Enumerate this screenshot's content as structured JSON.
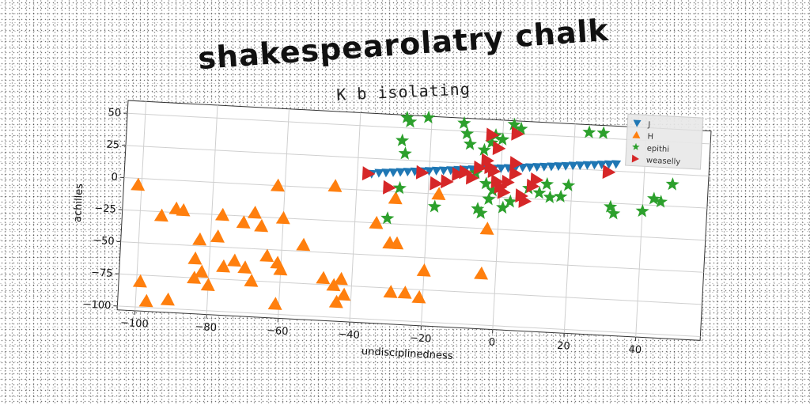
{
  "chart_data": {
    "type": "scatter",
    "title": "shakespearolatry chalk",
    "subtitle": "K b isolating",
    "xlabel": "undisciplinedness",
    "ylabel": "achilles",
    "xlim": [
      -105,
      58
    ],
    "ylim": [
      -103,
      60
    ],
    "xticks": [
      -100,
      -80,
      -60,
      -40,
      -20,
      0,
      20,
      40
    ],
    "yticks": [
      50,
      25,
      0,
      -25,
      -50,
      -75,
      -100
    ],
    "grid": true,
    "legend_position": "top-right",
    "series": [
      {
        "name": "J",
        "marker": "triangle-down",
        "color": "#1f77b4",
        "points": [
          [
            -36,
            13
          ],
          [
            -34,
            14
          ],
          [
            -32,
            14.5
          ],
          [
            -30,
            15
          ],
          [
            -28,
            15.5
          ],
          [
            -26,
            16
          ],
          [
            -24,
            16.5
          ],
          [
            -22,
            17
          ],
          [
            -20,
            17.5
          ],
          [
            -18,
            18
          ],
          [
            -16,
            18.5
          ],
          [
            -14,
            19
          ],
          [
            -12,
            19.5
          ],
          [
            -10,
            20
          ],
          [
            -8,
            20.5
          ],
          [
            -6,
            21
          ],
          [
            -4,
            21.5
          ],
          [
            -2,
            22
          ],
          [
            0,
            22.5
          ],
          [
            2,
            23
          ],
          [
            4,
            23.5
          ],
          [
            6,
            24
          ],
          [
            8,
            24.5
          ],
          [
            10,
            25
          ],
          [
            12,
            25.5
          ],
          [
            14,
            26
          ],
          [
            16,
            26.5
          ],
          [
            18,
            27
          ],
          [
            20,
            27.5
          ],
          [
            22,
            28
          ],
          [
            24,
            28.5
          ],
          [
            26,
            29
          ],
          [
            28,
            29.5
          ],
          [
            30,
            30
          ],
          [
            32,
            30.5
          ]
        ]
      },
      {
        "name": "H",
        "marker": "triangle-up",
        "color": "#ff7f0e",
        "points": [
          [
            -101,
            -5
          ],
          [
            -94,
            -28
          ],
          [
            -90,
            -22
          ],
          [
            -88,
            -23
          ],
          [
            -83,
            -45
          ],
          [
            -78,
            -42
          ],
          [
            -77,
            -25
          ],
          [
            -71,
            -30
          ],
          [
            -68,
            -22
          ],
          [
            -66,
            -32
          ],
          [
            -60,
            -25
          ],
          [
            -62,
            0
          ],
          [
            -54,
            -45
          ],
          [
            -46,
            2
          ],
          [
            -99,
            -80
          ],
          [
            -97,
            -95
          ],
          [
            -91,
            -93
          ],
          [
            -84,
            -60
          ],
          [
            -84,
            -75
          ],
          [
            -82,
            -70
          ],
          [
            -80,
            -80
          ],
          [
            -76,
            -65
          ],
          [
            -73,
            -60
          ],
          [
            -70,
            -65
          ],
          [
            -68,
            -75
          ],
          [
            -64,
            -55
          ],
          [
            -61,
            -60
          ],
          [
            -60,
            -65
          ],
          [
            -61,
            -92
          ],
          [
            -48,
            -70
          ],
          [
            -45,
            -75
          ],
          [
            -43,
            -70
          ],
          [
            -44,
            -88
          ],
          [
            -42,
            -82
          ],
          [
            -34,
            -25
          ],
          [
            -30,
            -40
          ],
          [
            -28,
            -40
          ],
          [
            -29,
            -5
          ],
          [
            -29,
            -78
          ],
          [
            -25,
            -78
          ],
          [
            -21,
            -81
          ],
          [
            -20,
            -60
          ],
          [
            -17,
            0
          ],
          [
            -3,
            -25
          ],
          [
            -4,
            -60
          ]
        ]
      },
      {
        "name": "epithi",
        "marker": "star",
        "color": "#2ca02c",
        "points": [
          [
            -27,
            58
          ],
          [
            -26,
            55
          ],
          [
            -21,
            59
          ],
          [
            -28,
            40
          ],
          [
            -27,
            30
          ],
          [
            -31,
            -21
          ],
          [
            -28,
            3
          ],
          [
            -18,
            -10
          ],
          [
            -11,
            56
          ],
          [
            -10,
            48
          ],
          [
            -9,
            40
          ],
          [
            -5,
            36
          ],
          [
            -3,
            42
          ],
          [
            -2,
            48
          ],
          [
            0,
            45
          ],
          [
            3,
            57
          ],
          [
            5,
            54
          ],
          [
            -7,
            18
          ],
          [
            -4,
            10
          ],
          [
            -2,
            5
          ],
          [
            -6,
            -10
          ],
          [
            -5,
            -13
          ],
          [
            -3,
            -2
          ],
          [
            1,
            -8
          ],
          [
            3,
            -3
          ],
          [
            8,
            8
          ],
          [
            11,
            5
          ],
          [
            13,
            12
          ],
          [
            14,
            2
          ],
          [
            17,
            3
          ],
          [
            19,
            12
          ],
          [
            24,
            54
          ],
          [
            28,
            54
          ],
          [
            31,
            -3
          ],
          [
            32,
            -8
          ],
          [
            40,
            -5
          ],
          [
            43,
            5
          ],
          [
            45,
            3
          ],
          [
            48,
            17
          ]
        ]
      },
      {
        "name": "weaselly",
        "marker": "triangle-right",
        "color": "#d62728",
        "points": [
          [
            -37,
            13
          ],
          [
            -31,
            3
          ],
          [
            -22,
            16
          ],
          [
            -18,
            8
          ],
          [
            -15,
            10
          ],
          [
            -12,
            16
          ],
          [
            -10,
            18
          ],
          [
            -8,
            14
          ],
          [
            -6,
            22
          ],
          [
            -4,
            28
          ],
          [
            -3,
            23
          ],
          [
            -2,
            20
          ],
          [
            -1,
            12
          ],
          [
            0,
            8
          ],
          [
            1,
            4
          ],
          [
            2,
            12
          ],
          [
            4,
            19
          ],
          [
            4,
            27
          ],
          [
            6,
            2
          ],
          [
            7,
            -2
          ],
          [
            9,
            10
          ],
          [
            10,
            15
          ],
          [
            -3,
            48
          ],
          [
            -1,
            38
          ],
          [
            4,
            50
          ],
          [
            30,
            24
          ]
        ]
      }
    ]
  }
}
